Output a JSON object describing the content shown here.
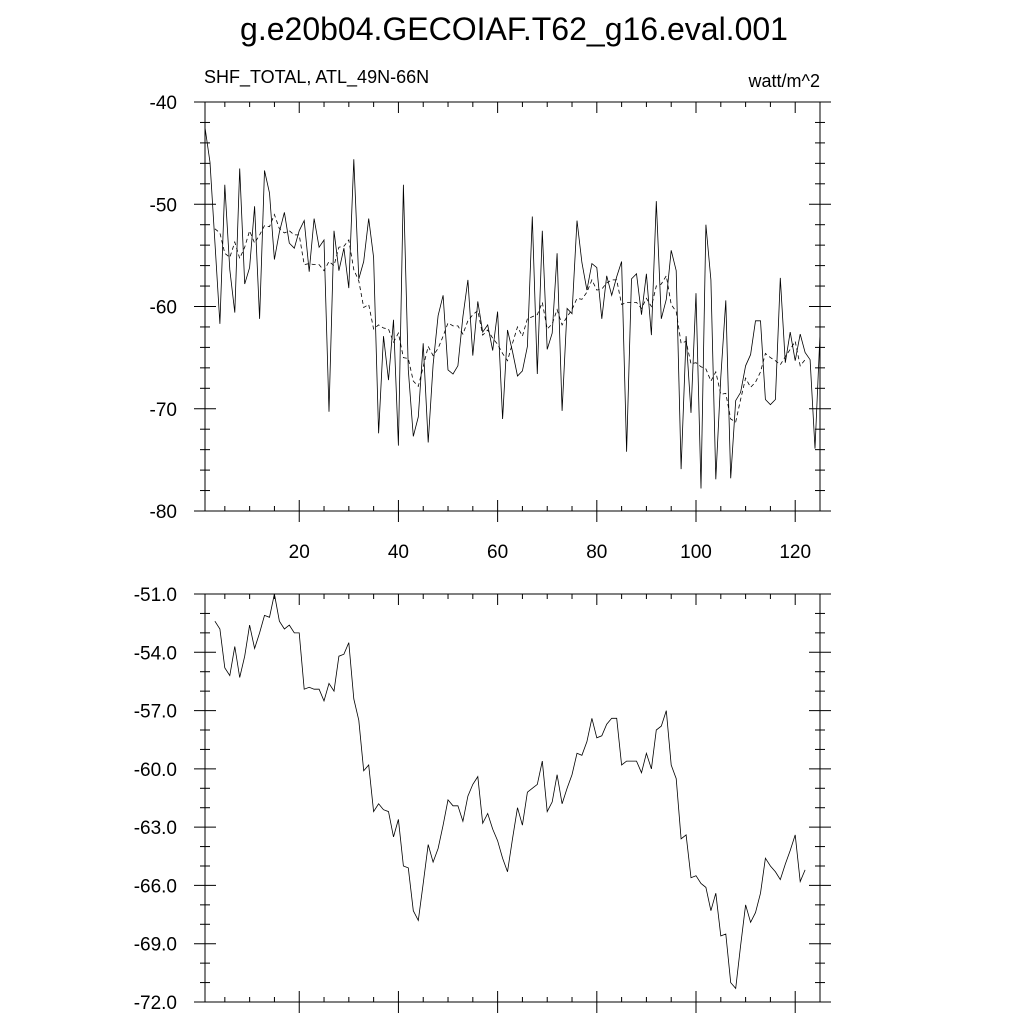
{
  "title": "g.e20b04.GECOIAF.T62_g16.eval.001",
  "chart_data": [
    {
      "type": "line",
      "left_label": "SHF_TOTAL, ATL_49N-66N",
      "right_label": "watt/m^2",
      "xlim": [
        1,
        125
      ],
      "ylim": [
        -80,
        -40
      ],
      "x_ticks": [
        20,
        40,
        60,
        80,
        100,
        120
      ],
      "x_tick_labels": [
        "20",
        "40",
        "60",
        "80",
        "100",
        "120"
      ],
      "y_ticks": [
        -80,
        -70,
        -60,
        -50,
        -40
      ],
      "y_tick_labels": [
        "-80",
        "-70",
        "-60",
        "-50",
        "-40"
      ],
      "x_start": 1,
      "series": [
        {
          "style": "solid",
          "values": [
            -42.5,
            -45.9,
            -53.7,
            -61.7,
            -48.1,
            -56.4,
            -60.6,
            -46.5,
            -57.8,
            -56.2,
            -50.2,
            -61.2,
            -46.7,
            -48.9,
            -55.4,
            -52.7,
            -50.8,
            -53.8,
            -54.3,
            -52.6,
            -51.6,
            -56.6,
            -51.4,
            -54.2,
            -53.5,
            -70.3,
            -52.6,
            -56.5,
            -54.3,
            -58.2,
            -45.6,
            -57.3,
            -55.6,
            -51.4,
            -55.2,
            -72.4,
            -62.9,
            -67.2,
            -61.3,
            -73.6,
            -48.1,
            -66.2,
            -72.7,
            -70.8,
            -63.6,
            -73.3,
            -65.7,
            -60.9,
            -58.9,
            -66.2,
            -66.6,
            -65.8,
            -61.0,
            -57.4,
            -64.8,
            -59.5,
            -62.5,
            -61.8,
            -64.3,
            -60.5,
            -71.0,
            -62.3,
            -64.4,
            -66.8,
            -66.3,
            -63.9,
            -51.2,
            -66.6,
            -52.6,
            -64.2,
            -62.6,
            -54.8,
            -70.2,
            -60.2,
            -60.7,
            -51.6,
            -55.7,
            -58.4,
            -55.8,
            -56.2,
            -61.2,
            -57.0,
            -58.9,
            -57.1,
            -55.6,
            -74.2,
            -57.3,
            -56.8,
            -60.8,
            -56.8,
            -62.8,
            -49.7,
            -61.2,
            -59.3,
            -54.5,
            -56.5,
            -75.9,
            -62.9,
            -70.4,
            -58.7,
            -77.8,
            -52.0,
            -57.4,
            -76.9,
            -66.9,
            -59.4,
            -76.8,
            -69.2,
            -68.4,
            -65.8,
            -64.7,
            -61.4,
            -61.4,
            -69.1,
            -69.6,
            -69.1,
            -57.2,
            -65.5,
            -62.5,
            -65.3,
            -62.7,
            -64.5,
            -65.2,
            -73.9,
            -62.7
          ]
        },
        {
          "style": "dashed",
          "values": [
            null,
            null,
            -52.4,
            -52.8,
            -54.8,
            -55.2,
            -53.7,
            -55.3,
            -54.2,
            -52.6,
            -53.8,
            -53.0,
            -52.1,
            -52.2,
            -51.0,
            -52.4,
            -52.8,
            -52.6,
            -53.0,
            -53.0,
            -55.9,
            -55.8,
            -55.9,
            -55.9,
            -56.5,
            -55.6,
            -56.0,
            -54.2,
            -54.1,
            -53.5,
            -56.4,
            -57.5,
            -60.1,
            -59.8,
            -62.2,
            -61.8,
            -62.1,
            -62.2,
            -63.5,
            -62.6,
            -65.0,
            -65.1,
            -67.3,
            -67.8,
            -65.9,
            -63.9,
            -64.8,
            -64.1,
            -62.9,
            -61.6,
            -61.9,
            -61.9,
            -62.7,
            -61.4,
            -60.8,
            -60.4,
            -62.8,
            -62.3,
            -63.1,
            -63.7,
            -64.6,
            -65.3,
            -63.6,
            -62.0,
            -62.9,
            -61.2,
            -61.0,
            -60.8,
            -59.6,
            -62.2,
            -61.7,
            -60.3,
            -61.8,
            -61.0,
            -60.3,
            -59.2,
            -59.3,
            -58.6,
            -57.4,
            -58.4,
            -58.3,
            -57.7,
            -57.4,
            -57.4,
            -59.8,
            -59.6,
            -59.6,
            -59.6,
            -60.2,
            -59.2,
            -60.0,
            -58.0,
            -57.8,
            -57.0,
            -59.8,
            -60.5,
            -63.6,
            -63.4,
            -65.6,
            -65.5,
            -65.9,
            -66.1,
            -67.3,
            -66.4,
            -68.6,
            -68.5,
            -71.0,
            -71.3,
            -69.1,
            -67.0,
            -67.9,
            -67.4,
            -66.4,
            -64.6,
            -65.0,
            -65.3,
            -65.7,
            -64.9,
            -64.2,
            -63.4,
            -65.8,
            -65.2,
            null,
            null
          ]
        }
      ]
    },
    {
      "type": "line",
      "xlim": [
        1,
        125
      ],
      "ylim": [
        -72,
        -51
      ],
      "x_ticks": [
        20,
        40,
        60,
        80,
        100,
        120
      ],
      "y_ticks": [
        -72,
        -69,
        -66,
        -63,
        -60,
        -57,
        -54,
        -51
      ],
      "y_tick_labels": [
        "-72.0",
        "-69.0",
        "-66.0",
        "-63.0",
        "-60.0",
        "-57.0",
        "-54.0",
        "-51.0"
      ],
      "x_start": 1,
      "series": [
        {
          "style": "solid",
          "values": [
            null,
            null,
            -52.4,
            -52.8,
            -54.8,
            -55.2,
            -53.7,
            -55.3,
            -54.2,
            -52.6,
            -53.8,
            -53.0,
            -52.1,
            -52.2,
            -51.0,
            -52.4,
            -52.8,
            -52.6,
            -53.0,
            -53.0,
            -55.9,
            -55.8,
            -55.9,
            -55.9,
            -56.5,
            -55.6,
            -56.0,
            -54.2,
            -54.1,
            -53.5,
            -56.4,
            -57.5,
            -60.1,
            -59.8,
            -62.2,
            -61.8,
            -62.1,
            -62.2,
            -63.5,
            -62.6,
            -65.0,
            -65.1,
            -67.3,
            -67.8,
            -65.9,
            -63.9,
            -64.8,
            -64.1,
            -62.9,
            -61.6,
            -61.9,
            -61.9,
            -62.7,
            -61.4,
            -60.8,
            -60.4,
            -62.8,
            -62.3,
            -63.1,
            -63.7,
            -64.6,
            -65.3,
            -63.6,
            -62.0,
            -62.9,
            -61.2,
            -61.0,
            -60.8,
            -59.6,
            -62.2,
            -61.7,
            -60.3,
            -61.8,
            -61.0,
            -60.3,
            -59.2,
            -59.3,
            -58.6,
            -57.4,
            -58.4,
            -58.3,
            -57.7,
            -57.4,
            -57.4,
            -59.8,
            -59.6,
            -59.6,
            -59.6,
            -60.2,
            -59.2,
            -60.0,
            -58.0,
            -57.8,
            -57.0,
            -59.8,
            -60.5,
            -63.6,
            -63.4,
            -65.6,
            -65.5,
            -65.9,
            -66.1,
            -67.3,
            -66.4,
            -68.6,
            -68.5,
            -71.0,
            -71.3,
            -69.1,
            -67.0,
            -67.9,
            -67.4,
            -66.4,
            -64.6,
            -65.0,
            -65.3,
            -65.7,
            -64.9,
            -64.2,
            -63.4,
            -65.8,
            -65.2,
            null,
            null
          ]
        }
      ]
    }
  ]
}
